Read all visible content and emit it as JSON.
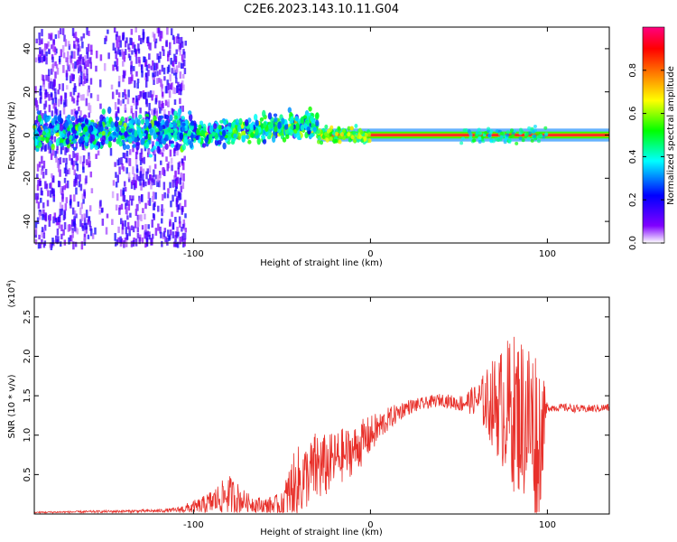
{
  "title": "C2E6.2023.143.10.11.G04",
  "colors": {
    "background": "#ffffff",
    "axis": "#000000",
    "snr_line": "#e8302a"
  },
  "chart_data": [
    {
      "type": "heatmap",
      "name": "spectrogram",
      "xlabel": "Height of straight line (km)",
      "ylabel": "Frequency (Hz)",
      "xlim": [
        -190,
        135
      ],
      "ylim": [
        -50,
        50
      ],
      "xticks": [
        -100,
        0,
        100
      ],
      "yticks": [
        -40,
        -20,
        0,
        20,
        40
      ],
      "colorbar": {
        "label": "Normalized spectral amplitude",
        "range": [
          0.0,
          1.0
        ],
        "ticks": [
          0.0,
          0.2,
          0.4,
          0.6,
          0.8
        ],
        "tick_labels": [
          "0.0",
          "0.2",
          "0.4",
          "0.6",
          "0.8"
        ],
        "colormap": [
          "#ffffff",
          "#8000ff",
          "#0000ff",
          "#00ffff",
          "#00ff00",
          "#ffff00",
          "#ff8000",
          "#ff0000",
          "#ff0080"
        ]
      },
      "features": [
        {
          "description": "noise scatter",
          "x_range": [
            -190,
            -105
          ],
          "freq_range": [
            -50,
            50
          ],
          "amplitude": 0.1
        },
        {
          "description": "signal band",
          "x_range": [
            -190,
            -30
          ],
          "center_freq": [
            0,
            6
          ],
          "amplitude": 0.35
        },
        {
          "description": "strong carrier",
          "x_range": [
            -30,
            135
          ],
          "center_freq": 0,
          "amplitude": 0.95
        }
      ]
    },
    {
      "type": "line",
      "name": "snr",
      "xlabel": "Height of straight line (km)",
      "ylabel": "SNR (10 * v/v)",
      "yscale_label": "(x10",
      "yscale_exp": "4",
      "xlim": [
        -190,
        135
      ],
      "ylim": [
        0,
        2.75
      ],
      "xticks": [
        -100,
        0,
        100
      ],
      "yticks": [
        0.5,
        1.0,
        1.5,
        2.0,
        2.5
      ],
      "ytick_labels": [
        "0.5",
        "1.0",
        "1.5",
        "2.0",
        "2.5"
      ],
      "envelope": {
        "x": [
          -190,
          -120,
          -110,
          -95,
          -85,
          -80,
          -75,
          -70,
          -60,
          -50,
          -45,
          -40,
          -35,
          -30,
          -25,
          -20,
          -15,
          -10,
          -5,
          0,
          10,
          20,
          30,
          40,
          50,
          60,
          70,
          80,
          90,
          95,
          100,
          105,
          110,
          120,
          135
        ],
        "y": [
          0.02,
          0.04,
          0.05,
          0.1,
          0.2,
          0.25,
          0.2,
          0.15,
          0.1,
          0.12,
          0.3,
          0.4,
          0.5,
          0.6,
          0.6,
          0.7,
          0.75,
          0.8,
          0.9,
          1.0,
          1.2,
          1.35,
          1.4,
          1.45,
          1.4,
          1.45,
          1.4,
          1.3,
          1.2,
          0.95,
          1.35,
          1.35,
          1.35,
          1.33,
          1.35
        ],
        "spread": [
          0.01,
          0.02,
          0.03,
          0.12,
          0.2,
          0.25,
          0.2,
          0.12,
          0.1,
          0.15,
          0.4,
          0.5,
          0.4,
          0.5,
          0.4,
          0.35,
          0.35,
          0.3,
          0.3,
          0.25,
          0.15,
          0.1,
          0.08,
          0.08,
          0.1,
          0.2,
          0.6,
          1.0,
          1.1,
          1.2,
          0.05,
          0.05,
          0.05,
          0.05,
          0.05
        ]
      }
    }
  ]
}
